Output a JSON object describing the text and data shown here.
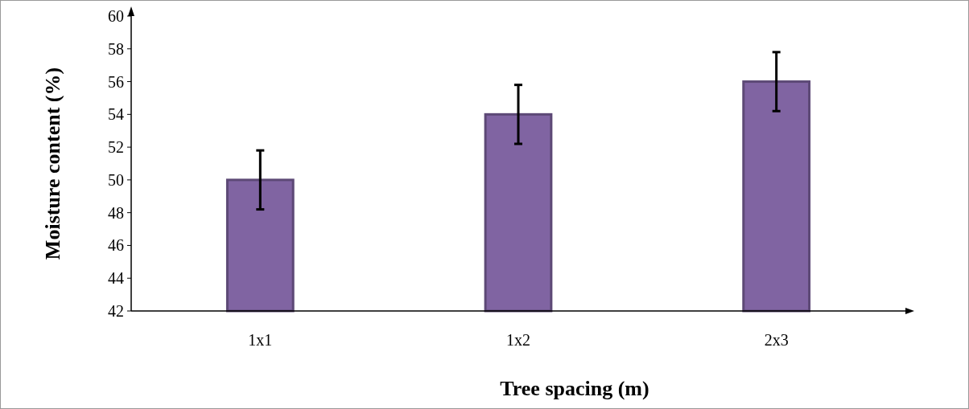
{
  "chart_data": {
    "type": "bar",
    "xlabel": "Tree spacing (m)",
    "ylabel": "Moisture content (%)",
    "categories": [
      "1x1",
      "1x2",
      "2x3"
    ],
    "values": [
      50,
      54,
      56
    ],
    "errors": [
      1.8,
      1.8,
      1.8
    ],
    "color": "#8064a2",
    "ylim": [
      42,
      60
    ],
    "yticks": [
      42,
      44,
      46,
      48,
      50,
      52,
      54,
      56,
      58,
      60
    ],
    "grid": false
  }
}
